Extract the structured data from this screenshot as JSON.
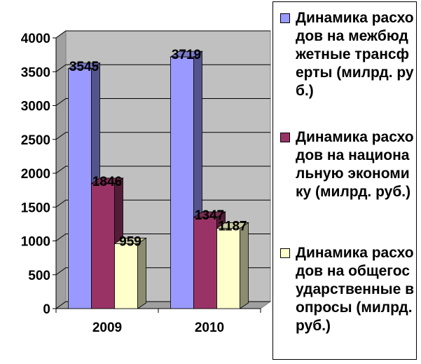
{
  "chart_data": {
    "type": "bar",
    "categories": [
      "2009",
      "2010"
    ],
    "series": [
      {
        "name": "Динамика расходов на межбюджетные трансферты (милрд. руб.)",
        "values": [
          3545,
          3719
        ],
        "color": "#9999ff"
      },
      {
        "name": "Динамика расходов на национальную экономику (милрд. руб.)",
        "values": [
          1846,
          1347
        ],
        "color": "#993366"
      },
      {
        "name": "Динамика расходов на общегосударственные вопросы (милрд. руб.)",
        "values": [
          959,
          1187
        ],
        "color": "#ffffcc"
      }
    ],
    "ylim": [
      0,
      4000
    ],
    "yticks": [
      0,
      500,
      1000,
      1500,
      2000,
      2500,
      3000,
      3500,
      4000
    ],
    "grid": true,
    "legend": "right",
    "style": "3d-clustered-column",
    "wall_color": "#c0c0c0"
  }
}
